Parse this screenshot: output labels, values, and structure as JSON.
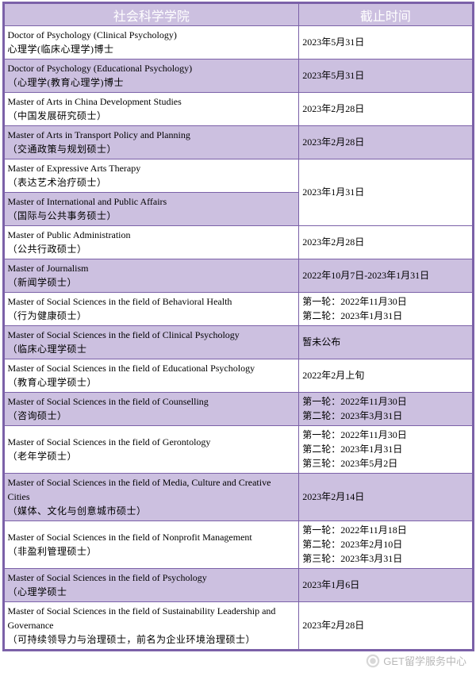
{
  "header": {
    "program_col": "社会科学学院",
    "deadline_col": "截止时间"
  },
  "colors": {
    "border": "#7b61a8",
    "header_bg": "#ccc0e0",
    "header_text": "#ffffff",
    "row_alt_bg": "#ccc0e0",
    "row_bg": "#ffffff",
    "text": "#000000",
    "watermark": "#b8b8b8"
  },
  "rows": [
    {
      "alt": false,
      "prog_en": "Doctor of Psychology (Clinical Psychology)",
      "prog_cn": "心理学(临床心理学)博士",
      "dead": "2023年5月31日"
    },
    {
      "alt": true,
      "prog_en": "Doctor of Psychology (Educational Psychology)",
      "prog_cn": "（心理学(教育心理学)博士",
      "dead": "2023年5月31日"
    },
    {
      "alt": false,
      "prog_en": "Master of Arts in China Development Studies",
      "prog_cn": "（中国发展研究硕士）",
      "dead": "2023年2月28日"
    },
    {
      "alt": true,
      "prog_en": "Master of Arts in Transport Policy and Planning",
      "prog_cn": "（交通政策与规划硕士）",
      "dead": "2023年2月28日"
    },
    {
      "alt": false,
      "prog_en": "Master of Expressive Arts Therapy",
      "prog_cn": "（表达艺术治疗硕士）",
      "dead": ""
    },
    {
      "alt": true,
      "prog_en": "Master of International and Public Affairs",
      "prog_cn": "（国际与公共事务硕士）",
      "dead": ""
    },
    {
      "alt": false,
      "prog_en": "Master of Public Administration",
      "prog_cn": "（公共行政硕士）",
      "dead": "2023年2月28日"
    },
    {
      "alt": true,
      "prog_en": "Master of Journalism",
      "prog_cn": "（新闻学硕士）",
      "dead": "2022年10月7日-2023年1月31日"
    },
    {
      "alt": false,
      "prog_en": "Master of Social Sciences in the field of Behavioral Health",
      "prog_cn": "（行为健康硕士）",
      "dead": "第一轮：2022年11月30日\n第二轮：2023年1月31日"
    },
    {
      "alt": true,
      "prog_en": "Master of Social Sciences in the field of Clinical Psychology",
      "prog_cn": "（临床心理学硕士",
      "dead": "暂未公布"
    },
    {
      "alt": false,
      "prog_en": "Master of Social Sciences in the field of Educational Psychology",
      "prog_cn": "（教育心理学硕士）",
      "dead": "2022年2月上旬"
    },
    {
      "alt": true,
      "prog_en": "Master of Social Sciences in the field of Counselling",
      "prog_cn": "（咨询硕士）",
      "dead": "第一轮：2022年11月30日\n第二轮：2023年3月31日"
    },
    {
      "alt": false,
      "prog_en": "Master of Social Sciences in the field of Gerontology",
      "prog_cn": "（老年学硕士）",
      "dead": "第一轮：2022年11月30日\n第二轮：2023年1月31日\n第三轮：2023年5月2日"
    },
    {
      "alt": true,
      "prog_en": "Master of Social Sciences in the field of Media, Culture and Creative Cities",
      "prog_cn": "（媒体、文化与创意城市硕士）",
      "dead": "2023年2月14日"
    },
    {
      "alt": false,
      "prog_en": "Master of Social Sciences in the field of Nonprofit Management",
      "prog_cn": "（非盈利管理硕士）",
      "dead": "第一轮：2022年11月18日\n第二轮：2023年2月10日\n第三轮：2023年3月31日"
    },
    {
      "alt": true,
      "prog_en": "Master of Social Sciences in the field of Psychology",
      "prog_cn": "（心理学硕士",
      "dead": "2023年1月6日"
    },
    {
      "alt": false,
      "prog_en": "Master of Social Sciences in the field of Sustainability Leadership and Governance",
      "prog_cn": "（可持续领导力与治理硕士，前名为企业环境治理硕士）",
      "dead": "2023年2月28日"
    }
  ],
  "merged_deadline": {
    "text": "2023年1月31日",
    "span_rows": [
      4,
      5
    ]
  },
  "watermark": "GET留学服务中心"
}
